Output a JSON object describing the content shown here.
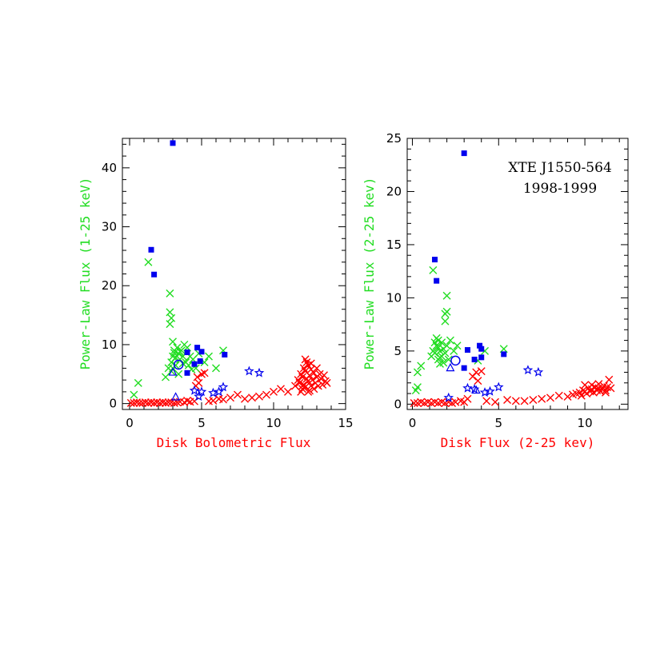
{
  "colors": {
    "red": "#ff0000",
    "green": "#22dd22",
    "blue": "#0000ee",
    "axis": "#000000"
  },
  "chart_data": [
    {
      "type": "scatter",
      "xlabel": "Disk Bolometric Flux",
      "ylabel": "Power-Law Flux (1-25 keV)",
      "xlim": [
        -0.5,
        15
      ],
      "ylim": [
        -1,
        45
      ],
      "xticks": [
        0,
        5,
        10,
        15
      ],
      "yticks": [
        0,
        10,
        20,
        30,
        40
      ],
      "xlabel_color": "red",
      "ylabel_color": "green",
      "series": [
        {
          "marker": "x",
          "color": "red",
          "points": [
            [
              0.1,
              0.1
            ],
            [
              0.3,
              0.1
            ],
            [
              0.5,
              0.2
            ],
            [
              0.7,
              0.1
            ],
            [
              0.9,
              0.1
            ],
            [
              1.1,
              0.2
            ],
            [
              1.3,
              0.1
            ],
            [
              1.5,
              0.2
            ],
            [
              1.7,
              0.1
            ],
            [
              1.9,
              0.2
            ],
            [
              2.1,
              0.1
            ],
            [
              2.3,
              0.2
            ],
            [
              2.5,
              0.1
            ],
            [
              2.7,
              0.2
            ],
            [
              2.9,
              0.2
            ],
            [
              3.1,
              0.1
            ],
            [
              3.3,
              0.2
            ],
            [
              3.5,
              0.3
            ],
            [
              3.8,
              0.2
            ],
            [
              4.0,
              0.5
            ],
            [
              4.2,
              0.3
            ],
            [
              4.5,
              0.4
            ],
            [
              4.7,
              4.5
            ],
            [
              5.0,
              5.0
            ],
            [
              5.2,
              5.2
            ],
            [
              4.6,
              3.0
            ],
            [
              4.8,
              3.5
            ],
            [
              5.5,
              0.4
            ],
            [
              5.8,
              0.5
            ],
            [
              6.2,
              0.8
            ],
            [
              6.5,
              0.7
            ],
            [
              7.0,
              1.0
            ],
            [
              7.5,
              1.5
            ],
            [
              8.0,
              0.8
            ],
            [
              8.5,
              1.0
            ],
            [
              9.0,
              1.2
            ],
            [
              9.5,
              1.5
            ],
            [
              10.0,
              2.0
            ],
            [
              10.5,
              2.5
            ],
            [
              11.0,
              2.0
            ],
            [
              11.5,
              3.0
            ],
            [
              11.7,
              4.0
            ],
            [
              11.8,
              3.5
            ],
            [
              11.9,
              5.0
            ],
            [
              12.0,
              4.5
            ],
            [
              12.0,
              2.5
            ],
            [
              12.1,
              6.0
            ],
            [
              12.1,
              3.2
            ],
            [
              12.2,
              5.5
            ],
            [
              12.2,
              2.8
            ],
            [
              12.3,
              7.0
            ],
            [
              12.3,
              4.2
            ],
            [
              12.4,
              3.8
            ],
            [
              12.4,
              6.5
            ],
            [
              12.5,
              4.8
            ],
            [
              12.5,
              2.2
            ],
            [
              12.6,
              5.8
            ],
            [
              12.6,
              3.0
            ],
            [
              12.7,
              4.0
            ],
            [
              12.8,
              5.2
            ],
            [
              12.8,
              2.5
            ],
            [
              12.9,
              3.5
            ],
            [
              13.0,
              4.5
            ],
            [
              13.0,
              6.0
            ],
            [
              13.1,
              3.0
            ],
            [
              13.2,
              5.0
            ],
            [
              13.3,
              4.2
            ],
            [
              13.4,
              3.2
            ],
            [
              13.5,
              4.8
            ],
            [
              13.6,
              3.8
            ],
            [
              13.7,
              3.5
            ],
            [
              12.2,
              7.5
            ],
            [
              12.0,
              3.0
            ],
            [
              11.9,
              2.0
            ],
            [
              12.4,
              2.0
            ],
            [
              12.6,
              6.8
            ]
          ]
        },
        {
          "marker": "x",
          "color": "green",
          "points": [
            [
              0.3,
              1.5
            ],
            [
              0.6,
              3.5
            ],
            [
              1.3,
              24.0
            ],
            [
              2.8,
              18.7
            ],
            [
              2.8,
              15.5
            ],
            [
              2.9,
              14.5
            ],
            [
              2.8,
              13.5
            ],
            [
              2.5,
              4.5
            ],
            [
              2.7,
              6.0
            ],
            [
              2.9,
              7.0
            ],
            [
              3.0,
              8.0
            ],
            [
              3.0,
              10.5
            ],
            [
              3.1,
              9.0
            ],
            [
              3.2,
              6.5
            ],
            [
              3.3,
              9.5
            ],
            [
              3.4,
              8.5
            ],
            [
              3.5,
              7.5
            ],
            [
              3.6,
              9.0
            ],
            [
              3.7,
              8.0
            ],
            [
              3.8,
              10.0
            ],
            [
              3.9,
              7.0
            ],
            [
              4.0,
              9.5
            ],
            [
              4.1,
              6.5
            ],
            [
              4.2,
              8.0
            ],
            [
              4.4,
              7.5
            ],
            [
              4.6,
              6.0
            ],
            [
              4.8,
              8.5
            ],
            [
              5.2,
              7.0
            ],
            [
              5.5,
              8.0
            ],
            [
              6.0,
              6.0
            ],
            [
              6.5,
              9.0
            ],
            [
              3.0,
              6.0
            ],
            [
              3.2,
              7.8
            ],
            [
              3.5,
              8.8
            ],
            [
              3.7,
              6.8
            ],
            [
              2.9,
              5.5
            ],
            [
              3.4,
              5.0
            ],
            [
              4.3,
              5.8
            ],
            [
              3.1,
              8.6
            ]
          ]
        },
        {
          "marker": "square",
          "color": "blue",
          "points": [
            [
              3.0,
              44.2
            ],
            [
              1.5,
              26.1
            ],
            [
              1.7,
              21.9
            ],
            [
              4.0,
              8.7
            ],
            [
              4.7,
              9.5
            ],
            [
              5.0,
              8.8
            ],
            [
              4.5,
              6.7
            ],
            [
              4.9,
              7.2
            ],
            [
              6.6,
              8.3
            ],
            [
              4.0,
              5.2
            ]
          ]
        },
        {
          "marker": "star",
          "color": "blue",
          "points": [
            [
              8.3,
              5.5
            ],
            [
              9.0,
              5.2
            ],
            [
              4.5,
              2.2
            ],
            [
              5.0,
              2.0
            ],
            [
              5.8,
              1.8
            ],
            [
              6.2,
              2.0
            ],
            [
              6.5,
              2.8
            ],
            [
              4.8,
              1.2
            ]
          ]
        },
        {
          "marker": "circle",
          "color": "blue",
          "points": [
            [
              3.4,
              6.6
            ]
          ]
        },
        {
          "marker": "triangle",
          "color": "blue",
          "points": [
            [
              3.0,
              5.3
            ],
            [
              3.2,
              1.1
            ]
          ]
        }
      ]
    },
    {
      "type": "scatter",
      "xlabel": "Disk Flux (2-25 kev)",
      "ylabel": "Power-Law Flux (2-25 kev)",
      "xlim": [
        -0.3,
        12.5
      ],
      "ylim": [
        -0.5,
        25
      ],
      "xticks": [
        0,
        5,
        10
      ],
      "yticks": [
        0,
        5,
        10,
        15,
        20,
        25
      ],
      "xlabel_color": "red",
      "ylabel_color": "green",
      "annotations": [
        "XTE J1550-564",
        "1998-1999"
      ],
      "series": [
        {
          "marker": "x",
          "color": "red",
          "points": [
            [
              0.1,
              0.1
            ],
            [
              0.3,
              0.1
            ],
            [
              0.5,
              0.2
            ],
            [
              0.7,
              0.1
            ],
            [
              0.9,
              0.2
            ],
            [
              1.1,
              0.1
            ],
            [
              1.3,
              0.2
            ],
            [
              1.5,
              0.1
            ],
            [
              1.7,
              0.2
            ],
            [
              1.9,
              0.1
            ],
            [
              2.1,
              0.2
            ],
            [
              2.3,
              0.1
            ],
            [
              2.5,
              0.2
            ],
            [
              2.8,
              0.3
            ],
            [
              3.0,
              0.2
            ],
            [
              3.2,
              0.5
            ],
            [
              3.5,
              2.6
            ],
            [
              3.7,
              3.0
            ],
            [
              3.8,
              2.2
            ],
            [
              4.0,
              3.1
            ],
            [
              4.3,
              0.3
            ],
            [
              4.8,
              0.2
            ],
            [
              5.5,
              0.4
            ],
            [
              6.0,
              0.3
            ],
            [
              6.5,
              0.3
            ],
            [
              7.0,
              0.4
            ],
            [
              7.5,
              0.5
            ],
            [
              8.0,
              0.6
            ],
            [
              8.5,
              0.8
            ],
            [
              9.0,
              0.7
            ],
            [
              9.3,
              0.9
            ],
            [
              9.5,
              1.0
            ],
            [
              9.7,
              1.1
            ],
            [
              9.8,
              0.8
            ],
            [
              9.9,
              1.3
            ],
            [
              10.0,
              1.2
            ],
            [
              10.1,
              1.0
            ],
            [
              10.2,
              1.5
            ],
            [
              10.3,
              1.2
            ],
            [
              10.4,
              1.4
            ],
            [
              10.5,
              1.1
            ],
            [
              10.6,
              1.6
            ],
            [
              10.7,
              1.3
            ],
            [
              10.8,
              1.5
            ],
            [
              10.9,
              1.2
            ],
            [
              11.0,
              1.4
            ],
            [
              11.1,
              1.7
            ],
            [
              11.2,
              1.3
            ],
            [
              11.3,
              1.6
            ],
            [
              11.4,
              2.3
            ],
            [
              11.5,
              1.5
            ],
            [
              10.0,
              1.8
            ],
            [
              10.4,
              1.8
            ],
            [
              10.8,
              1.9
            ],
            [
              11.2,
              1.1
            ]
          ]
        },
        {
          "marker": "x",
          "color": "green",
          "points": [
            [
              0.2,
              1.3
            ],
            [
              0.3,
              1.6
            ],
            [
              0.3,
              3.0
            ],
            [
              0.5,
              3.6
            ],
            [
              1.2,
              12.6
            ],
            [
              2.0,
              10.2
            ],
            [
              1.9,
              8.5
            ],
            [
              1.9,
              7.8
            ],
            [
              2.0,
              8.7
            ],
            [
              1.1,
              4.5
            ],
            [
              1.2,
              5.0
            ],
            [
              1.3,
              4.8
            ],
            [
              1.4,
              5.5
            ],
            [
              1.4,
              6.2
            ],
            [
              1.5,
              4.2
            ],
            [
              1.5,
              6.0
            ],
            [
              1.6,
              5.0
            ],
            [
              1.6,
              3.8
            ],
            [
              1.7,
              5.8
            ],
            [
              1.7,
              4.5
            ],
            [
              1.8,
              5.2
            ],
            [
              1.8,
              3.9
            ],
            [
              1.9,
              4.8
            ],
            [
              2.0,
              5.5
            ],
            [
              2.1,
              4.2
            ],
            [
              2.2,
              6.0
            ],
            [
              2.4,
              5.0
            ],
            [
              2.6,
              5.5
            ],
            [
              3.8,
              4.1
            ],
            [
              4.2,
              5.0
            ],
            [
              5.3,
              5.2
            ],
            [
              1.3,
              5.8
            ],
            [
              1.5,
              5.3
            ],
            [
              1.6,
              4.4
            ]
          ]
        },
        {
          "marker": "square",
          "color": "blue",
          "points": [
            [
              3.0,
              23.6
            ],
            [
              1.3,
              13.6
            ],
            [
              1.4,
              11.6
            ],
            [
              3.2,
              5.1
            ],
            [
              3.9,
              5.5
            ],
            [
              4.0,
              5.2
            ],
            [
              3.6,
              4.2
            ],
            [
              4.0,
              4.4
            ],
            [
              5.3,
              4.7
            ],
            [
              3.0,
              3.4
            ]
          ]
        },
        {
          "marker": "star",
          "color": "blue",
          "points": [
            [
              6.7,
              3.2
            ],
            [
              7.3,
              3.0
            ],
            [
              3.2,
              1.5
            ],
            [
              3.6,
              1.4
            ],
            [
              4.2,
              1.1
            ],
            [
              4.5,
              1.2
            ],
            [
              5.0,
              1.6
            ],
            [
              2.1,
              0.6
            ]
          ]
        },
        {
          "marker": "circle",
          "color": "blue",
          "points": [
            [
              2.5,
              4.1
            ]
          ]
        },
        {
          "marker": "triangle",
          "color": "blue",
          "points": [
            [
              2.2,
              3.4
            ],
            [
              3.7,
              1.3
            ]
          ]
        }
      ]
    }
  ]
}
